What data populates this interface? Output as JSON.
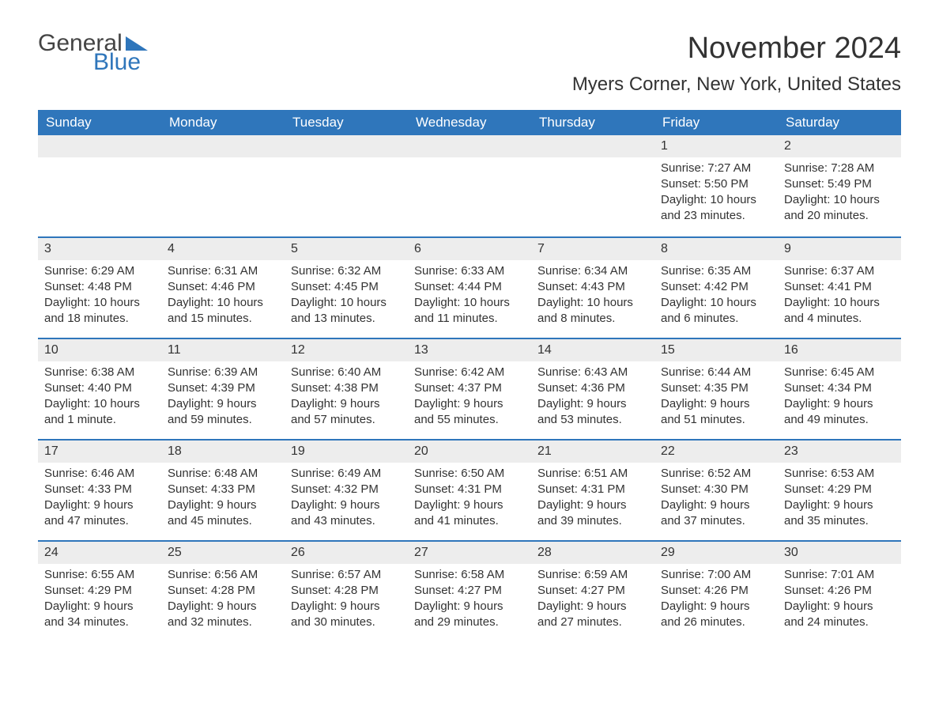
{
  "logo": {
    "general": "General",
    "blue": "Blue"
  },
  "title": "November 2024",
  "location": "Myers Corner, New York, United States",
  "colors": {
    "header_bg": "#2f76bb",
    "header_text": "#ffffff",
    "row_divider": "#2f76bb",
    "daynum_bg": "#ededed",
    "text": "#333333",
    "page_bg": "#ffffff"
  },
  "day_names": [
    "Sunday",
    "Monday",
    "Tuesday",
    "Wednesday",
    "Thursday",
    "Friday",
    "Saturday"
  ],
  "weeks": [
    [
      null,
      null,
      null,
      null,
      null,
      {
        "n": "1",
        "sunrise": "Sunrise: 7:27 AM",
        "sunset": "Sunset: 5:50 PM",
        "daylight": "Daylight: 10 hours and 23 minutes."
      },
      {
        "n": "2",
        "sunrise": "Sunrise: 7:28 AM",
        "sunset": "Sunset: 5:49 PM",
        "daylight": "Daylight: 10 hours and 20 minutes."
      }
    ],
    [
      {
        "n": "3",
        "sunrise": "Sunrise: 6:29 AM",
        "sunset": "Sunset: 4:48 PM",
        "daylight": "Daylight: 10 hours and 18 minutes."
      },
      {
        "n": "4",
        "sunrise": "Sunrise: 6:31 AM",
        "sunset": "Sunset: 4:46 PM",
        "daylight": "Daylight: 10 hours and 15 minutes."
      },
      {
        "n": "5",
        "sunrise": "Sunrise: 6:32 AM",
        "sunset": "Sunset: 4:45 PM",
        "daylight": "Daylight: 10 hours and 13 minutes."
      },
      {
        "n": "6",
        "sunrise": "Sunrise: 6:33 AM",
        "sunset": "Sunset: 4:44 PM",
        "daylight": "Daylight: 10 hours and 11 minutes."
      },
      {
        "n": "7",
        "sunrise": "Sunrise: 6:34 AM",
        "sunset": "Sunset: 4:43 PM",
        "daylight": "Daylight: 10 hours and 8 minutes."
      },
      {
        "n": "8",
        "sunrise": "Sunrise: 6:35 AM",
        "sunset": "Sunset: 4:42 PM",
        "daylight": "Daylight: 10 hours and 6 minutes."
      },
      {
        "n": "9",
        "sunrise": "Sunrise: 6:37 AM",
        "sunset": "Sunset: 4:41 PM",
        "daylight": "Daylight: 10 hours and 4 minutes."
      }
    ],
    [
      {
        "n": "10",
        "sunrise": "Sunrise: 6:38 AM",
        "sunset": "Sunset: 4:40 PM",
        "daylight": "Daylight: 10 hours and 1 minute."
      },
      {
        "n": "11",
        "sunrise": "Sunrise: 6:39 AM",
        "sunset": "Sunset: 4:39 PM",
        "daylight": "Daylight: 9 hours and 59 minutes."
      },
      {
        "n": "12",
        "sunrise": "Sunrise: 6:40 AM",
        "sunset": "Sunset: 4:38 PM",
        "daylight": "Daylight: 9 hours and 57 minutes."
      },
      {
        "n": "13",
        "sunrise": "Sunrise: 6:42 AM",
        "sunset": "Sunset: 4:37 PM",
        "daylight": "Daylight: 9 hours and 55 minutes."
      },
      {
        "n": "14",
        "sunrise": "Sunrise: 6:43 AM",
        "sunset": "Sunset: 4:36 PM",
        "daylight": "Daylight: 9 hours and 53 minutes."
      },
      {
        "n": "15",
        "sunrise": "Sunrise: 6:44 AM",
        "sunset": "Sunset: 4:35 PM",
        "daylight": "Daylight: 9 hours and 51 minutes."
      },
      {
        "n": "16",
        "sunrise": "Sunrise: 6:45 AM",
        "sunset": "Sunset: 4:34 PM",
        "daylight": "Daylight: 9 hours and 49 minutes."
      }
    ],
    [
      {
        "n": "17",
        "sunrise": "Sunrise: 6:46 AM",
        "sunset": "Sunset: 4:33 PM",
        "daylight": "Daylight: 9 hours and 47 minutes."
      },
      {
        "n": "18",
        "sunrise": "Sunrise: 6:48 AM",
        "sunset": "Sunset: 4:33 PM",
        "daylight": "Daylight: 9 hours and 45 minutes."
      },
      {
        "n": "19",
        "sunrise": "Sunrise: 6:49 AM",
        "sunset": "Sunset: 4:32 PM",
        "daylight": "Daylight: 9 hours and 43 minutes."
      },
      {
        "n": "20",
        "sunrise": "Sunrise: 6:50 AM",
        "sunset": "Sunset: 4:31 PM",
        "daylight": "Daylight: 9 hours and 41 minutes."
      },
      {
        "n": "21",
        "sunrise": "Sunrise: 6:51 AM",
        "sunset": "Sunset: 4:31 PM",
        "daylight": "Daylight: 9 hours and 39 minutes."
      },
      {
        "n": "22",
        "sunrise": "Sunrise: 6:52 AM",
        "sunset": "Sunset: 4:30 PM",
        "daylight": "Daylight: 9 hours and 37 minutes."
      },
      {
        "n": "23",
        "sunrise": "Sunrise: 6:53 AM",
        "sunset": "Sunset: 4:29 PM",
        "daylight": "Daylight: 9 hours and 35 minutes."
      }
    ],
    [
      {
        "n": "24",
        "sunrise": "Sunrise: 6:55 AM",
        "sunset": "Sunset: 4:29 PM",
        "daylight": "Daylight: 9 hours and 34 minutes."
      },
      {
        "n": "25",
        "sunrise": "Sunrise: 6:56 AM",
        "sunset": "Sunset: 4:28 PM",
        "daylight": "Daylight: 9 hours and 32 minutes."
      },
      {
        "n": "26",
        "sunrise": "Sunrise: 6:57 AM",
        "sunset": "Sunset: 4:28 PM",
        "daylight": "Daylight: 9 hours and 30 minutes."
      },
      {
        "n": "27",
        "sunrise": "Sunrise: 6:58 AM",
        "sunset": "Sunset: 4:27 PM",
        "daylight": "Daylight: 9 hours and 29 minutes."
      },
      {
        "n": "28",
        "sunrise": "Sunrise: 6:59 AM",
        "sunset": "Sunset: 4:27 PM",
        "daylight": "Daylight: 9 hours and 27 minutes."
      },
      {
        "n": "29",
        "sunrise": "Sunrise: 7:00 AM",
        "sunset": "Sunset: 4:26 PM",
        "daylight": "Daylight: 9 hours and 26 minutes."
      },
      {
        "n": "30",
        "sunrise": "Sunrise: 7:01 AM",
        "sunset": "Sunset: 4:26 PM",
        "daylight": "Daylight: 9 hours and 24 minutes."
      }
    ]
  ]
}
